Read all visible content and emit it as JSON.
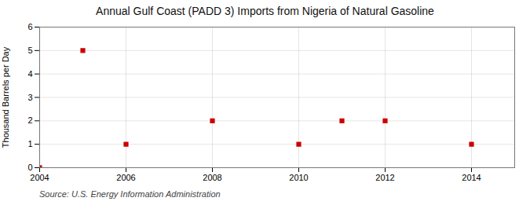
{
  "chart_data": {
    "type": "scatter",
    "title": "Annual Gulf Coast (PADD 3) Imports from Nigeria of Natural Gasoline",
    "ylabel": "Thousand Barrels per Day",
    "caption": "Source: U.S. Energy Information Administration",
    "x": [
      2004,
      2005,
      2006,
      2008,
      2010,
      2011,
      2012,
      2014
    ],
    "values": [
      0,
      5,
      1,
      2,
      1,
      2,
      2,
      1
    ],
    "color": "#cc0000",
    "marker": "square",
    "xlim": [
      2004,
      2015
    ],
    "ylim": [
      0,
      6
    ],
    "xticks": [
      2004,
      2006,
      2008,
      2010,
      2012,
      2014
    ],
    "yticks": [
      0,
      1,
      2,
      3,
      4,
      5,
      6
    ],
    "grid": true
  }
}
